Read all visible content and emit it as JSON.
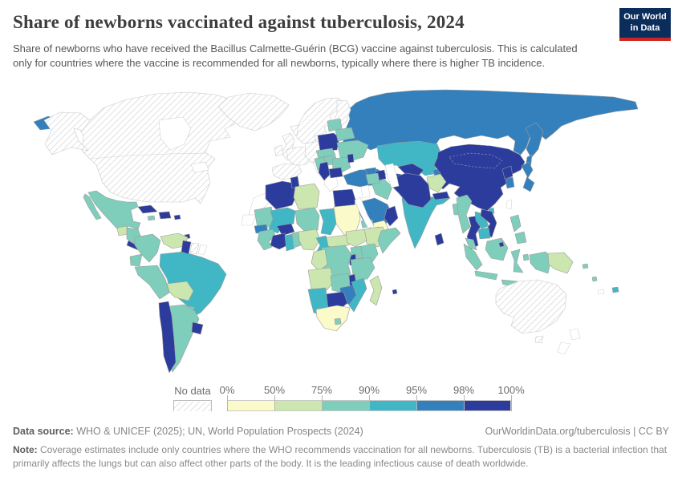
{
  "header": {
    "title": "Share of newborns vaccinated against tuberculosis, 2024",
    "subtitle": "Share of newborns who have received the Bacillus Calmette-Guérin (BCG) vaccine against tuberculosis. This is calculated only for countries where the vaccine is recommended for all newborns, typically where there is higher TB incidence.",
    "logo_line1": "Our World",
    "logo_line2": "in Data"
  },
  "footer": {
    "data_source_label": "Data source:",
    "data_source_text": "WHO & UNICEF (2025); UN, World Population Prospects (2024)",
    "link_text": "OurWorldinData.org/tuberculosis | CC BY",
    "note_label": "Note:",
    "note_text": "Coverage estimates include only countries where the WHO recommends vaccination for all newborns. Tuberculosis (TB) is a bacterial infection that primarily affects the lungs but can also affect other parts of the body. It is the leading infectious cause of death worldwide."
  },
  "chart_data": {
    "type": "choropleth-map",
    "title": "Share of newborns vaccinated against tuberculosis, 2024",
    "unit": "% of newborns receiving BCG vaccine",
    "legend": {
      "no_data_label": "No data",
      "tick_labels": [
        "0%",
        "50%",
        "75%",
        "90%",
        "95%",
        "98%",
        "100%"
      ],
      "bin_ranges": [
        "0-50%",
        "50-75%",
        "75-90%",
        "90-95%",
        "95-98%",
        "98-100%"
      ],
      "colors": [
        "#fbfacb",
        "#cbe6ae",
        "#7fcdbb",
        "#41b6c4",
        "#3380bd",
        "#2b3c9d"
      ],
      "no_data_border": "#b9b9b9"
    },
    "brand_colors": {
      "logo_navy": "#0b2d5b",
      "logo_red": "#cf2420"
    },
    "regions": {
      "alaska": "nd",
      "canada-usa": "nd",
      "greenland": "nd",
      "iceland": "nd",
      "uk": "nd",
      "ireland": "nd",
      "scandinavia": "nd",
      "finland": "nd",
      "denmark": "nd",
      "france": "nd",
      "iberia": "nd",
      "germany-central": "nd",
      "suriname": "nd",
      "australia": "nd",
      "tasmania": "nd",
      "italy": "ex",
      "greece": "ex",
      "morocco": "ex",
      "western-sahara": "ex",
      "french-guiana": "ex",
      "jordan-israel": "ex",
      "taiwan": "ex",
      "new-zealand-north": "ex",
      "new-zealand-south": "ex",
      "new-caledonia": "ex",
      "hudson-bay": "sea",
      "great-lakes": "sea",
      "caspian-sea": "sea",
      "red-sea": "sea",
      "sudan": 0,
      "yemen": 0,
      "south-africa": 0,
      "guatemala": 1,
      "venezuela": 1,
      "bolivia": 1,
      "libya": 1,
      "nigeria": 1,
      "central-african-republic": 1,
      "south-sudan": 1,
      "ethiopia": 1,
      "gabon-congo": 1,
      "angola": 1,
      "madagascar": 1,
      "afghanistan": 1,
      "papua-new-guinea": 1,
      "mexico": 2,
      "baja-california": 2,
      "honduras-nicaragua": 2,
      "jamaica": 2,
      "colombia": 2,
      "ecuador": 2,
      "peru": 2,
      "argentina": 2,
      "paraguay": 2,
      "mauritania": 2,
      "niger": 2,
      "guinea-sierra-leone": 2,
      "togo-benin": 2,
      "eritrea": 2,
      "uganda": 2,
      "kenya": 2,
      "tanzania": 2,
      "drc": 2,
      "zambia": 2,
      "somalia": 2,
      "syria": 2,
      "iraq": 2,
      "ukraine": 2,
      "belarus": 2,
      "baltics": 2,
      "czech-slovakia": 2,
      "hungary": 2,
      "romania": 2,
      "croatia-bosnia": 2,
      "myanmar": 2,
      "bangladesh": 2,
      "malaysia": 2,
      "sumatra": 2,
      "java": 2,
      "borneo": 2,
      "sulawesi": 2,
      "lesser-sunda": 2,
      "moluccas": 2,
      "west-papua": 2,
      "philippines-luzon": 2,
      "philippines-mindanao": 2,
      "lesotho": 2,
      "solomon-islands": 2,
      "vanuatu": 2,
      "kazakhstan": 3,
      "kyrgyzstan": 3,
      "mali": 3,
      "chad": 3,
      "ghana": 3,
      "cameroon": 3,
      "djibouti": 3,
      "namibia": 3,
      "mozambique": 3,
      "india": 3,
      "pakistan": 3,
      "laos": 3,
      "cambodia": 3,
      "brazil": 3,
      "hainan": 3,
      "fiji": 3,
      "russia": 4,
      "kamchatka": 4,
      "sakhalin": 4,
      "chukotka": 4,
      "turkey": 4,
      "georgia": 4,
      "tajikistan": 4,
      "saudi-arabia": 4,
      "japan": 4,
      "south-korea": 4,
      "zimbabwe": 4,
      "senegal": 4,
      "china-mongolia": 5,
      "north-korea": 5,
      "vietnam": 5,
      "thailand": 5,
      "sri-lanka": 5,
      "nepal": 5,
      "iran": 5,
      "uzbekistan": 5,
      "turkmenistan": 5,
      "azerbaijan-armenia": 5,
      "egypt": 5,
      "algeria": 5,
      "tunisia": 5,
      "burkina-faso": 5,
      "cote-divoire": 5,
      "rwanda-burundi": 5,
      "malawi": 5,
      "botswana": 5,
      "cuba": 5,
      "hispaniola": 5,
      "puerto-rico": 5,
      "trinidad": 5,
      "costa-rica-panama": 5,
      "chile": 5,
      "uruguay": 5,
      "guyana": 5,
      "poland": 5,
      "serbia-albania": 5,
      "bulgaria": 5,
      "moldova": 5,
      "oman": 5,
      "brunei": 5,
      "mauritius": 5
    }
  }
}
